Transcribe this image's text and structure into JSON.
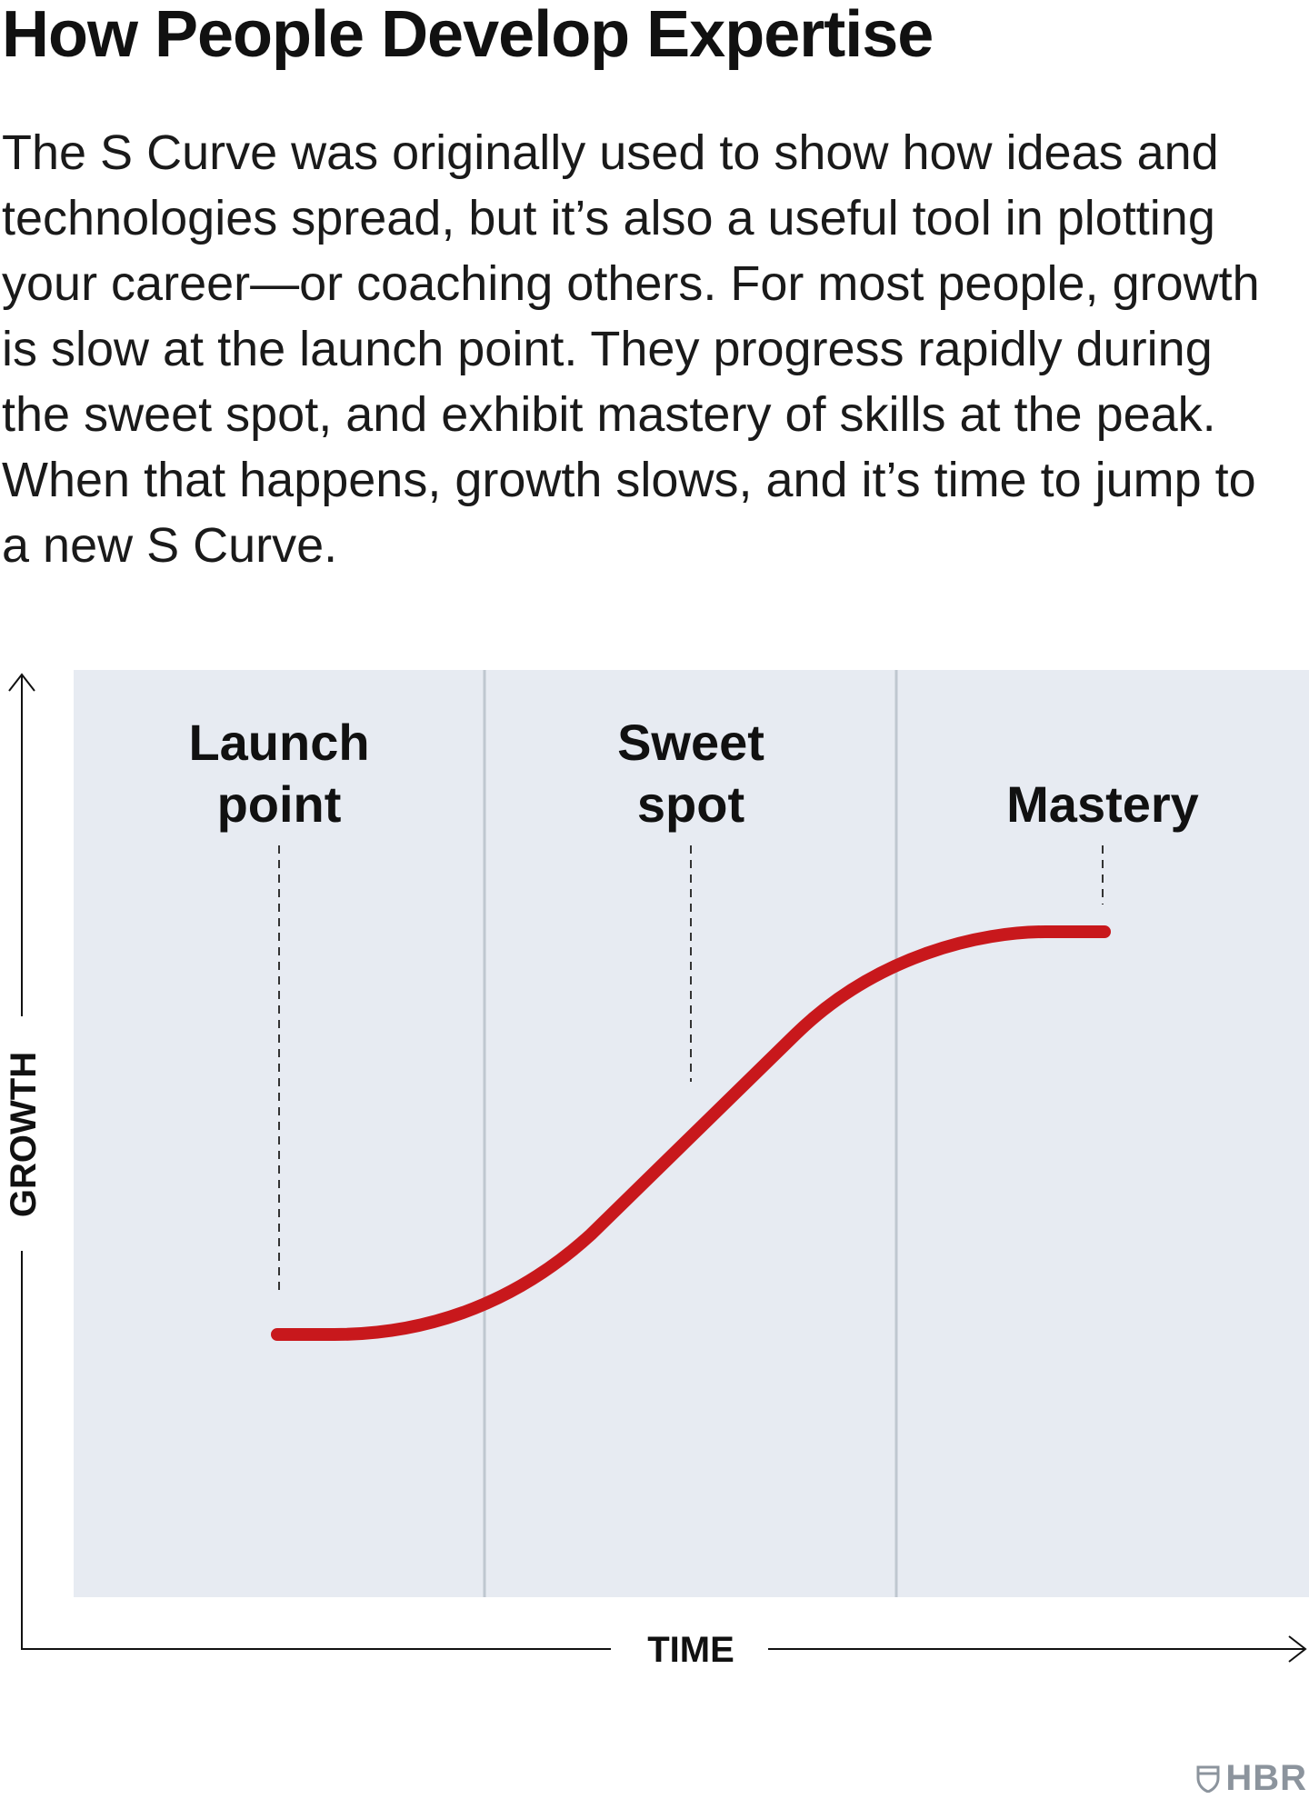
{
  "title": "How People Develop Expertise",
  "intro": "The S Curve was originally used to show how ideas and technologies spread, but it’s also a useful tool in plotting your career—or coaching others. For most people, growth is slow at the launch point. They progress rapidly during the sweet spot, and exhibit mastery of skills at the peak. When that happens, growth slows, and it’s time to jump to a new S Curve.",
  "diagram": {
    "x_axis_label": "TIME",
    "y_axis_label": "GROWTH",
    "stages": [
      {
        "line1": "Launch",
        "line2": "point"
      },
      {
        "line1": "Sweet",
        "line2": "spot"
      },
      {
        "line1": "",
        "line2": "Mastery"
      }
    ],
    "colors": {
      "curve": "#c8181c",
      "panel": "#e7ebf2",
      "divider": "#bfc7d0",
      "axis": "#111111"
    }
  },
  "footer": {
    "brand": "HBR",
    "icon": "shield-icon"
  }
}
